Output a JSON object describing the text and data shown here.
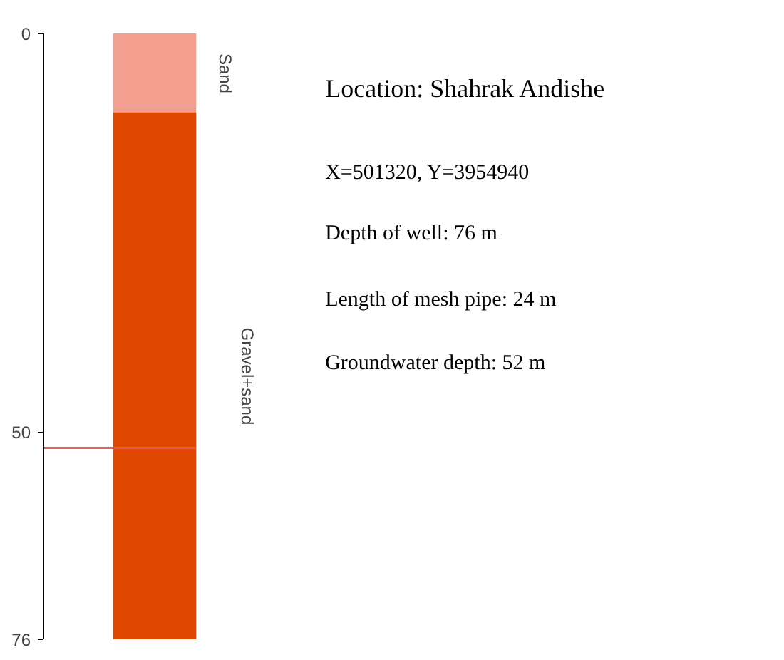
{
  "chart_data": {
    "type": "bar",
    "stacked": true,
    "categories": [
      null
    ],
    "series": [
      {
        "name": "Sand",
        "color": "#f4a090",
        "values": [
          10
        ]
      },
      {
        "name": "Gravel+sand",
        "color": "#e04800",
        "values": [
          66
        ]
      }
    ],
    "ylim": [
      76,
      0
    ],
    "yticks": [
      0,
      50,
      76
    ],
    "tick_labels": "y",
    "grid": false,
    "ref_lines": [
      {
        "axis": "y",
        "value": 52,
        "color": "#e06060"
      }
    ],
    "annotations": [
      "Location: Shahrak Andishe",
      "X=501320, Y=3954940",
      "Depth of well: 76 m",
      "Length of mesh pipe: 24 m",
      "Groundwater depth: 52 m"
    ]
  }
}
